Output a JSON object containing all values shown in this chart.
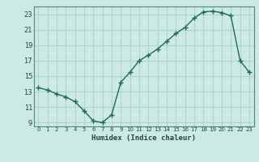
{
  "x": [
    0,
    1,
    2,
    3,
    4,
    5,
    6,
    7,
    8,
    9,
    10,
    11,
    12,
    13,
    14,
    15,
    16,
    17,
    18,
    19,
    20,
    21,
    22,
    23
  ],
  "y": [
    13.5,
    13.2,
    12.7,
    12.3,
    11.7,
    10.5,
    9.2,
    9.0,
    10.0,
    14.2,
    15.5,
    17.0,
    17.7,
    18.5,
    19.5,
    20.5,
    21.3,
    22.5,
    23.3,
    23.4,
    23.2,
    22.8,
    17.0,
    15.5
  ],
  "line_color": "#1a6b5a",
  "bg_color": "#cce9e5",
  "grid_major_color": "#b0d4cf",
  "grid_minor_color": "#d8eeeb",
  "xlabel": "Humidex (Indice chaleur)",
  "ylim": [
    8.5,
    24.0
  ],
  "xlim": [
    -0.5,
    23.5
  ],
  "yticks": [
    9,
    11,
    13,
    15,
    17,
    19,
    21,
    23
  ],
  "xticks": [
    0,
    1,
    2,
    3,
    4,
    5,
    6,
    7,
    8,
    9,
    10,
    11,
    12,
    13,
    14,
    15,
    16,
    17,
    18,
    19,
    20,
    21,
    22,
    23
  ]
}
